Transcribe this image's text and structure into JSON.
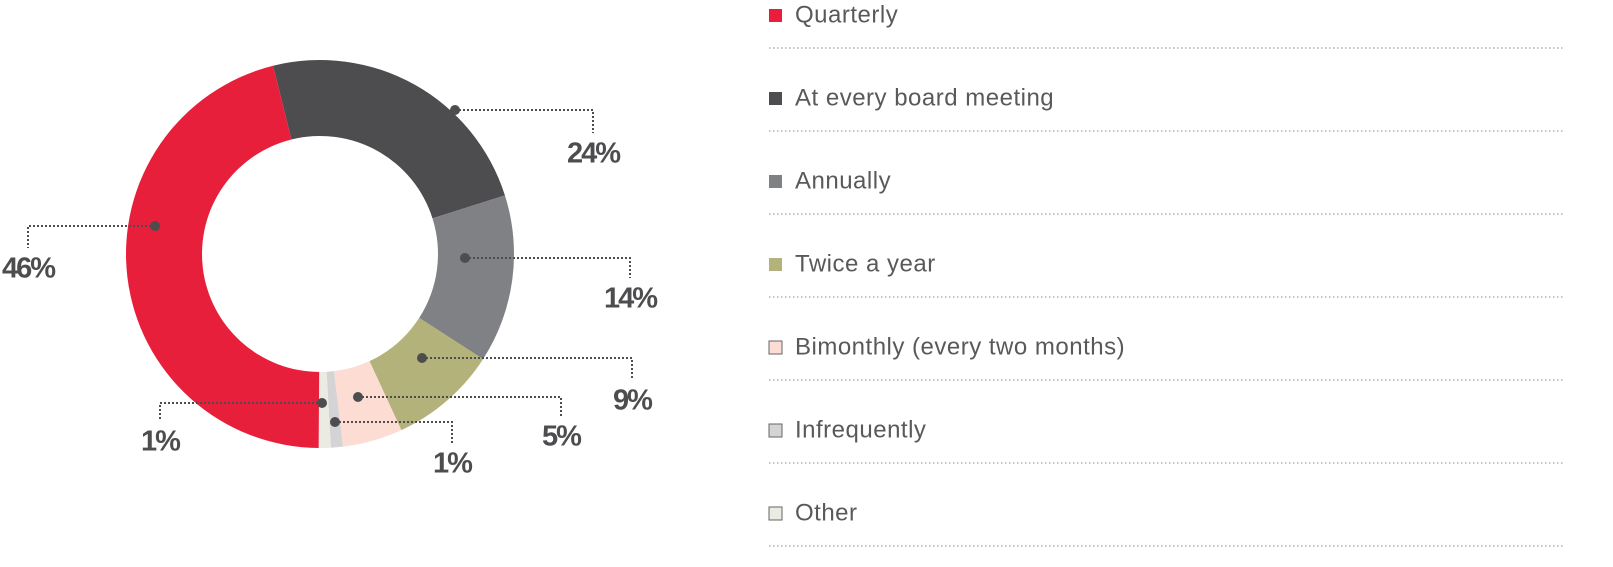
{
  "chart_data": {
    "type": "donut",
    "categories": [
      "At every board meeting",
      "Annually",
      "Twice a year",
      "Bimonthly (every two months)",
      "Infrequently",
      "Other",
      "Quarterly"
    ],
    "values": [
      24,
      14,
      9,
      5,
      1,
      1,
      46
    ],
    "value_labels": [
      "24%",
      "14%",
      "9%",
      "5%",
      "1%",
      "1%",
      "46%"
    ],
    "colors": [
      "#4d4d4f",
      "#808184",
      "#b2b27a",
      "#fcdcd3",
      "#d4d4d4",
      "#ecebe3",
      "#e81f3a"
    ],
    "legend_order": [
      6,
      0,
      1,
      2,
      3,
      4,
      5
    ]
  }
}
